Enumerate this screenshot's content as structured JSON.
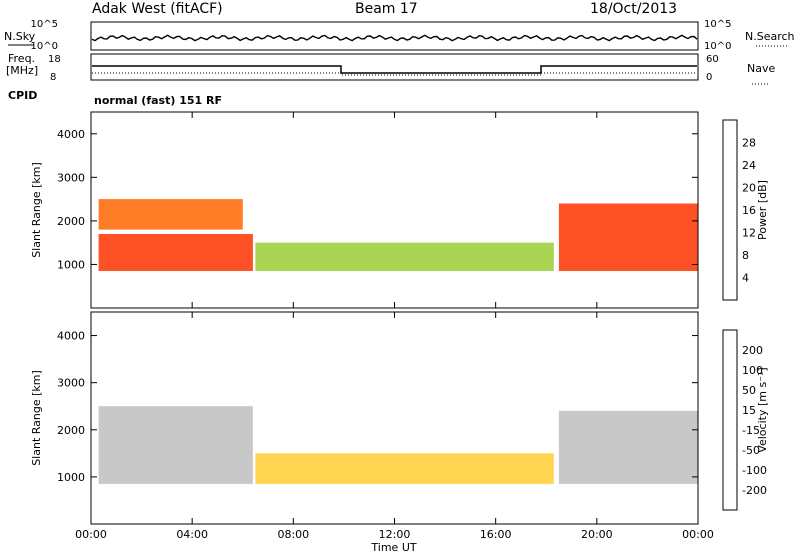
{
  "header": {
    "radar": "Adak West (fitACF)",
    "beam": "Beam 17",
    "date": "18/Oct/2013"
  },
  "params_panel": {
    "nsky_label": "N.Sky",
    "nsearch_label": "N.Search",
    "freq_label": "Freq.",
    "freq_unit": "[MHz]",
    "nave_label": "Nave",
    "cpid_label": "CPID",
    "cpid_value": "normal (fast) 151 RF",
    "noise_ticks_left": [
      "10^5",
      "10^0"
    ],
    "noise_ticks_right": [
      "10^5",
      "10^0"
    ],
    "freq_ticks": [
      "18",
      "8"
    ],
    "nave_ticks": [
      "60",
      "0"
    ]
  },
  "colors": {
    "velocity_scale": [
      "#e60000",
      "#ff5a00",
      "#ff9a00",
      "#ffcc33",
      "#bebebe",
      "#99dd33",
      "#33aa33",
      "#1a6a7a",
      "#2244cc"
    ],
    "power_scale": [
      "#1a33ff",
      "#2e6ae6",
      "#3a8a8a",
      "#3aa03a",
      "#99cc33",
      "#ffcc00",
      "#ff9900",
      "#ff6600",
      "#ff3300",
      "#ee0000"
    ],
    "ground_scatter": "#bebebe"
  },
  "chart_data": [
    {
      "type": "heatmap",
      "panel": "power",
      "ylabel": "Slant Range [km]",
      "ylim": [
        0,
        4500
      ],
      "yticks": [
        1000,
        2000,
        3000,
        4000
      ],
      "xticks": [
        "00:00",
        "04:00",
        "08:00",
        "12:00",
        "16:00",
        "20:00",
        "00:00"
      ],
      "colorbar": {
        "label": "Power [dB]",
        "ticks": [
          "4",
          "8",
          "12",
          "16",
          "20",
          "24",
          "28"
        ],
        "range": [
          0,
          30
        ]
      },
      "regions": [
        {
          "t": [
            0.3,
            6.4
          ],
          "range_km": [
            850,
            1700
          ],
          "value_db": 28
        },
        {
          "t": [
            0.3,
            6.0
          ],
          "range_km": [
            1800,
            2500
          ],
          "value_db": 24
        },
        {
          "t": [
            6.5,
            18.3
          ],
          "range_km": [
            850,
            1500
          ],
          "value_db": 12
        },
        {
          "t": [
            18.5,
            24.0
          ],
          "range_km": [
            850,
            2400
          ],
          "value_db": 28
        }
      ]
    },
    {
      "type": "heatmap",
      "panel": "velocity",
      "ylabel": "Slant Range [km]",
      "ylim": [
        0,
        4500
      ],
      "yticks": [
        1000,
        2000,
        3000,
        4000
      ],
      "xticks": [
        "00:00",
        "04:00",
        "08:00",
        "12:00",
        "16:00",
        "20:00",
        "00:00"
      ],
      "xlabel": "Time UT",
      "colorbar": {
        "label": "Velocity [m s⁻¹]",
        "ticks": [
          "200",
          "100",
          "50",
          "15",
          "-15",
          "-50",
          "-100",
          "-200"
        ],
        "range": [
          -250,
          250
        ]
      },
      "regions": [
        {
          "t": [
            0.3,
            6.4
          ],
          "range_km": [
            850,
            2500
          ],
          "value_ms": 0
        },
        {
          "t": [
            6.5,
            18.3
          ],
          "range_km": [
            850,
            1500
          ],
          "value_ms": -60
        },
        {
          "t": [
            18.5,
            24.0
          ],
          "range_km": [
            850,
            2400
          ],
          "value_ms": 0
        }
      ]
    }
  ]
}
